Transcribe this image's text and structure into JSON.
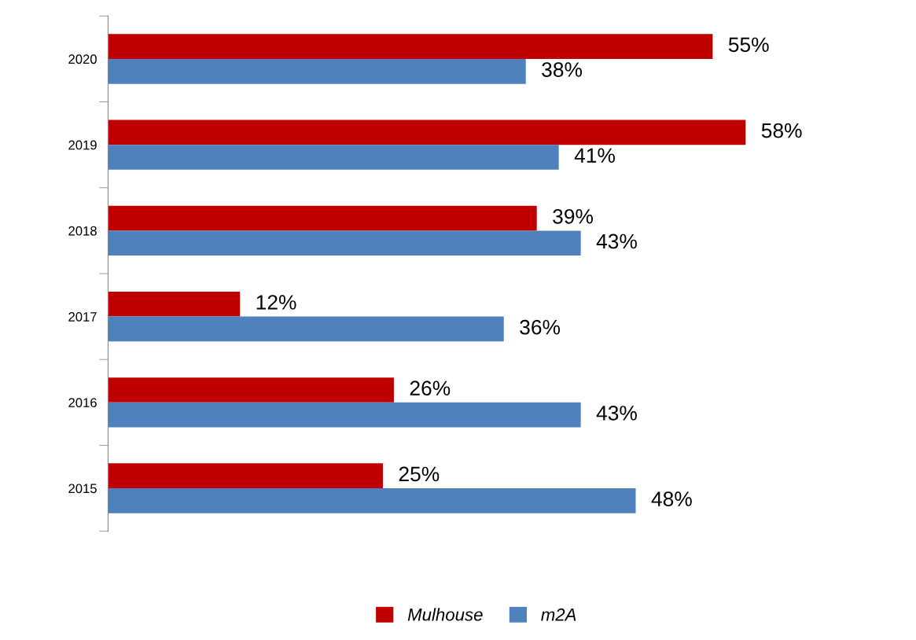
{
  "chart_data": {
    "type": "bar",
    "orientation": "horizontal",
    "categories": [
      "2020",
      "2019",
      "2018",
      "2017",
      "2016",
      "2015"
    ],
    "series": [
      {
        "name": "Mulhouse",
        "color": "#c00000",
        "values": [
          55,
          58,
          39,
          12,
          26,
          25
        ],
        "value_labels": [
          "55%",
          "58%",
          "39%",
          "12%",
          "26%",
          "25%"
        ]
      },
      {
        "name": "m2A",
        "color": "#4f81bd",
        "values": [
          38,
          41,
          43,
          36,
          43,
          48
        ],
        "value_labels": [
          "38%",
          "41%",
          "43%",
          "36%",
          "43%",
          "48%"
        ]
      }
    ],
    "legend": "bottom",
    "grid": false
  }
}
